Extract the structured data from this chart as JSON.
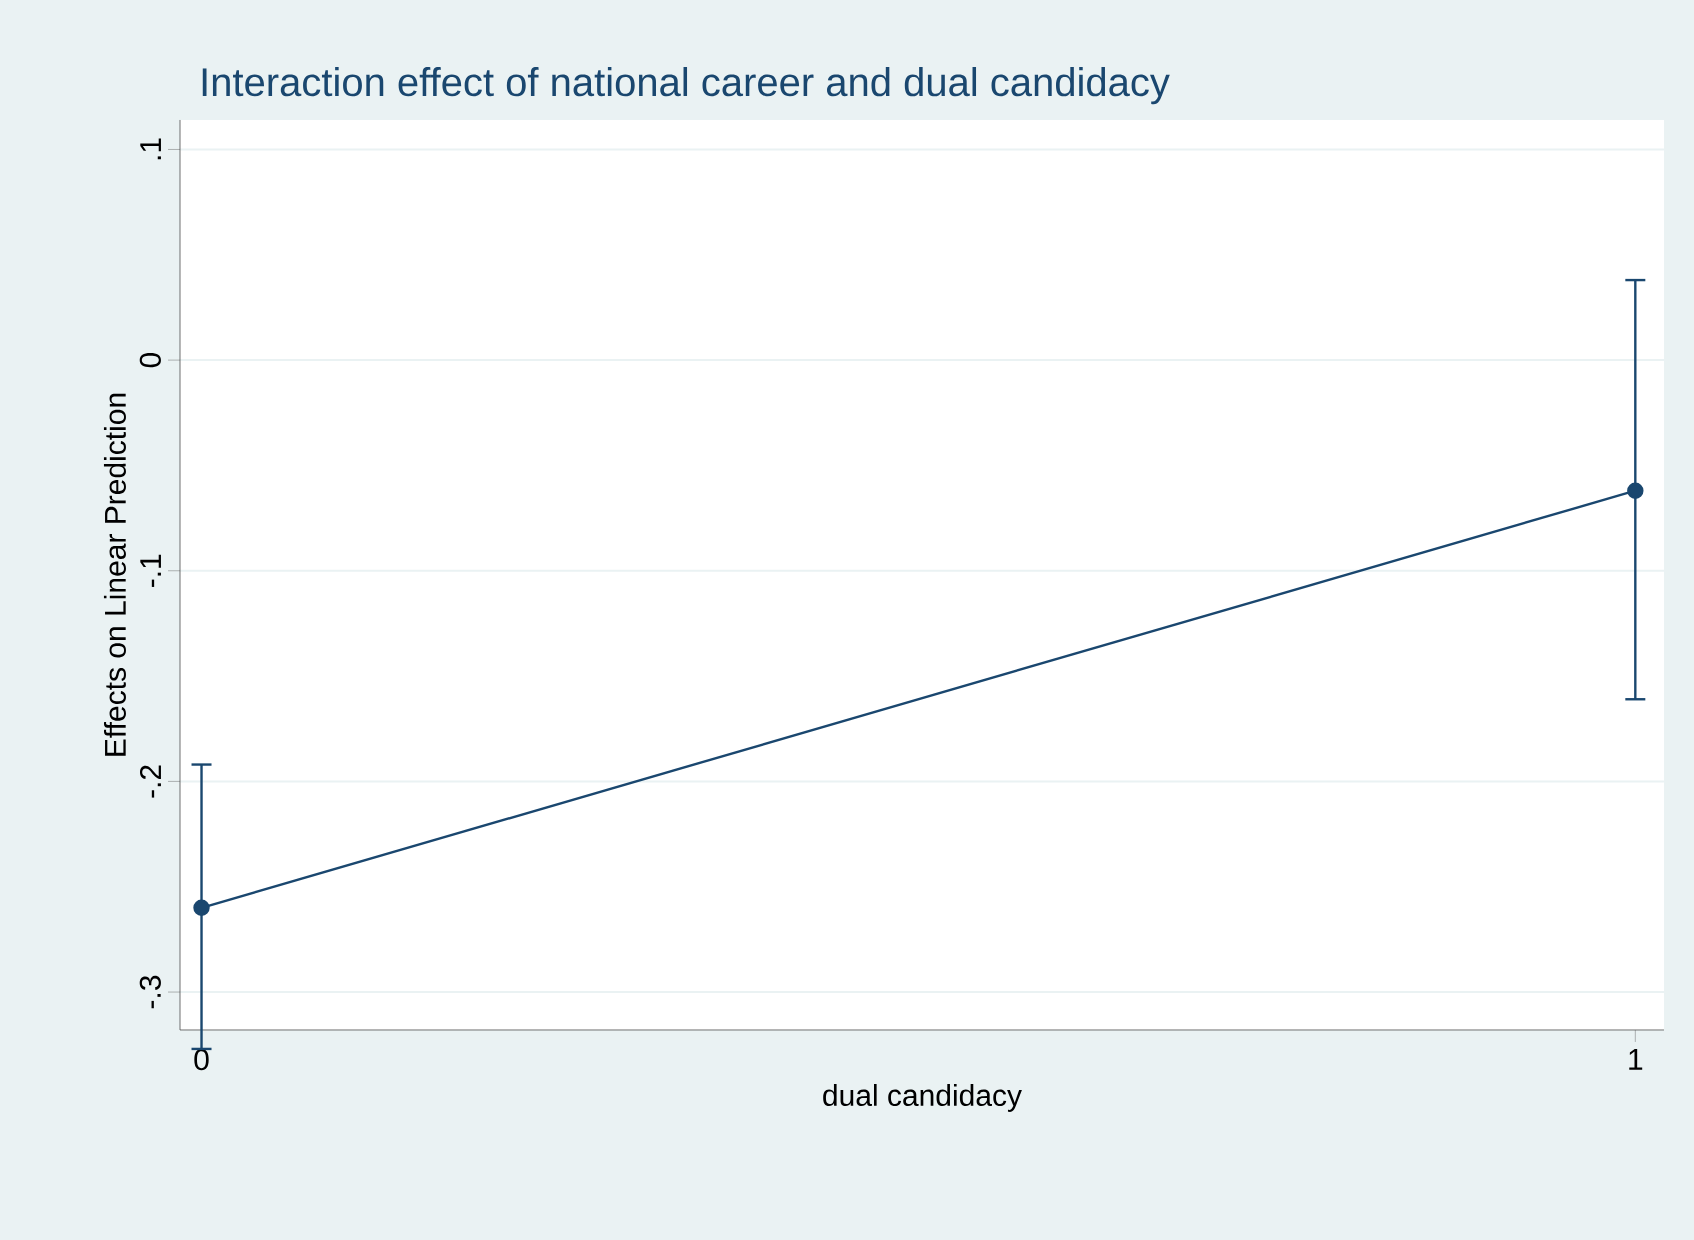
{
  "chart_data": {
    "type": "line",
    "title": "Interaction effect of national career and dual candidacy",
    "xlabel": "dual candidacy",
    "ylabel": "Effects on Linear Prediction",
    "x": [
      0,
      1
    ],
    "series": [
      {
        "color": "#1a476f",
        "values": [
          -0.26,
          -0.062
        ],
        "errors": [
          [
            -0.327,
            -0.192
          ],
          [
            -0.161,
            0.038
          ]
        ]
      }
    ],
    "xlim": [
      -0.015,
      1.02
    ],
    "ylim": [
      -0.318,
      0.114
    ],
    "xticks": [
      0,
      1
    ],
    "yticks": [
      {
        "value": -0.3,
        "label": "-.3"
      },
      {
        "value": -0.2,
        "label": "-.2"
      },
      {
        "value": -0.1,
        "label": "-.1"
      },
      {
        "value": 0,
        "label": "0"
      },
      {
        "value": 0.1,
        "label": ".1"
      }
    ],
    "grid": "y",
    "marker": "circle",
    "line_style": "solid"
  }
}
